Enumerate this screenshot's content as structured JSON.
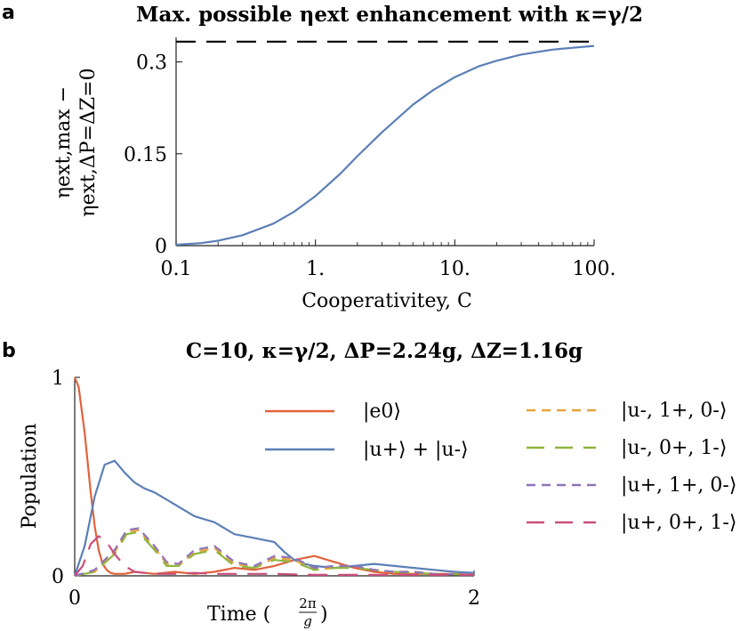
{
  "panels": {
    "a": {
      "letter": "a",
      "title": "Max. possible ηext enhancement with κ=γ/2",
      "ylabel_top": "ηext,max −",
      "ylabel_bottom": "ηext,ΔP=ΔZ=0",
      "xlabel": "Cooperativitey, C",
      "xticks": [
        "0.1",
        "1.",
        "10.",
        "100."
      ],
      "yticks": [
        "0",
        "0.15",
        "0.3"
      ]
    },
    "b": {
      "letter": "b",
      "title": "C=10,  κ=γ/2,  ΔP=2.24g,  ΔZ=1.16g",
      "ylabel": "Population",
      "xlabel": "Time (2π/g)",
      "xticks": [
        "0",
        "2"
      ],
      "yticks": [
        "0",
        "1"
      ]
    }
  },
  "chart_data": [
    {
      "type": "line",
      "title": "Max. possible ηext enhancement with κ=γ/2",
      "xlabel": "Cooperativitey, C",
      "ylabel": "ηext,max − ηext,ΔP=ΔZ=0",
      "xscale": "log",
      "xlim": [
        0.1,
        100
      ],
      "ylim": [
        0,
        0.34
      ],
      "asymptote": 0.333,
      "series": [
        {
          "color": "#5b7fb6",
          "dash": "solid",
          "x": [
            0.1,
            0.15,
            0.2,
            0.3,
            0.5,
            0.7,
            1,
            1.5,
            2,
            3,
            5,
            7,
            10,
            15,
            20,
            30,
            50,
            70,
            100
          ],
          "y": [
            0.0015,
            0.004,
            0.008,
            0.017,
            0.036,
            0.055,
            0.081,
            0.117,
            0.146,
            0.185,
            0.23,
            0.254,
            0.275,
            0.293,
            0.302,
            0.312,
            0.32,
            0.323,
            0.326
          ]
        },
        {
          "color": "#000000",
          "dash": "long-dash",
          "x": [
            0.1,
            100
          ],
          "y": [
            0.333,
            0.333
          ]
        }
      ]
    },
    {
      "type": "line",
      "title": "C=10,  κ=γ/2,  ΔP=2.24g,  ΔZ=1.16g",
      "xlabel": "Time (2π/g)",
      "ylabel": "Population",
      "xlim": [
        0,
        2
      ],
      "ylim": [
        0,
        1
      ],
      "legend": "top-right",
      "series": [
        {
          "name": "|e0⟩",
          "color": "#e2623b",
          "dash": "solid",
          "x": [
            0,
            0.02,
            0.05,
            0.08,
            0.1,
            0.12,
            0.14,
            0.16,
            0.18,
            0.2,
            0.25,
            0.3,
            0.4,
            0.5,
            0.6,
            0.7,
            0.8,
            0.9,
            1.0,
            1.1,
            1.2,
            1.3,
            1.4,
            1.5,
            1.6,
            1.7,
            1.8,
            1.9,
            2.0
          ],
          "y": [
            1.0,
            0.95,
            0.72,
            0.42,
            0.25,
            0.13,
            0.06,
            0.03,
            0.015,
            0.01,
            0.01,
            0.02,
            0.01,
            0.02,
            0.01,
            0.02,
            0.04,
            0.03,
            0.05,
            0.08,
            0.1,
            0.07,
            0.04,
            0.02,
            0.01,
            0.01,
            0.01,
            0.01,
            0.005
          ]
        },
        {
          "name": "|u+⟩ + |u-⟩",
          "color": "#5b7fb6",
          "dash": "solid",
          "x": [
            0,
            0.05,
            0.1,
            0.15,
            0.2,
            0.25,
            0.3,
            0.35,
            0.4,
            0.5,
            0.6,
            0.7,
            0.8,
            0.9,
            1.0,
            1.05,
            1.1,
            1.15,
            1.2,
            1.3,
            1.4,
            1.5,
            1.6,
            1.7,
            1.8,
            1.9,
            2.0
          ],
          "y": [
            0,
            0.15,
            0.4,
            0.56,
            0.58,
            0.52,
            0.47,
            0.44,
            0.42,
            0.36,
            0.3,
            0.27,
            0.21,
            0.19,
            0.17,
            0.12,
            0.08,
            0.06,
            0.05,
            0.04,
            0.05,
            0.06,
            0.05,
            0.04,
            0.03,
            0.02,
            0.015
          ]
        },
        {
          "name": "|u-, 1+, 0-⟩",
          "color": "#e6a43a",
          "dash": "short-dash",
          "x": [
            0,
            0.1,
            0.2,
            0.26,
            0.32,
            0.4,
            0.46,
            0.52,
            0.6,
            0.7,
            0.8,
            0.9,
            1.0,
            1.1,
            1.2,
            1.3,
            1.4,
            1.5,
            1.6,
            1.7,
            1.8,
            2.0
          ],
          "y": [
            0,
            0.02,
            0.12,
            0.22,
            0.23,
            0.14,
            0.06,
            0.05,
            0.12,
            0.14,
            0.06,
            0.04,
            0.09,
            0.08,
            0.03,
            0.04,
            0.05,
            0.03,
            0.02,
            0.02,
            0.01,
            0.005
          ]
        },
        {
          "name": "|u-, 0+, 1-⟩",
          "color": "#8fb53e",
          "dash": "long-dash",
          "x": [
            0,
            0.1,
            0.2,
            0.26,
            0.32,
            0.4,
            0.46,
            0.52,
            0.6,
            0.7,
            0.8,
            0.9,
            1.0,
            1.1,
            1.2,
            1.3,
            1.4,
            1.5,
            1.6,
            1.7,
            1.8,
            2.0
          ],
          "y": [
            0,
            0.02,
            0.11,
            0.21,
            0.22,
            0.13,
            0.05,
            0.05,
            0.11,
            0.13,
            0.05,
            0.04,
            0.08,
            0.07,
            0.03,
            0.04,
            0.04,
            0.03,
            0.02,
            0.015,
            0.01,
            0.005
          ]
        },
        {
          "name": "|u+, 1+, 0-⟩",
          "color": "#8f74b8",
          "dash": "short-dash",
          "x": [
            0,
            0.1,
            0.2,
            0.26,
            0.32,
            0.4,
            0.46,
            0.52,
            0.6,
            0.7,
            0.8,
            0.9,
            1.0,
            1.1,
            1.2,
            1.3,
            1.4,
            1.5,
            1.6,
            1.7,
            1.8,
            2.0
          ],
          "y": [
            0,
            0.03,
            0.13,
            0.23,
            0.24,
            0.15,
            0.07,
            0.06,
            0.13,
            0.15,
            0.07,
            0.05,
            0.1,
            0.09,
            0.04,
            0.05,
            0.05,
            0.03,
            0.02,
            0.02,
            0.01,
            0.005
          ]
        },
        {
          "name": "|u+, 0+, 1-⟩",
          "color": "#c94f7c",
          "dash": "long-dash",
          "x": [
            0,
            0.04,
            0.08,
            0.12,
            0.16,
            0.2,
            0.25,
            0.3,
            0.35,
            0.4,
            0.5,
            0.6,
            0.7,
            0.8,
            0.9,
            1.0,
            1.2,
            1.4,
            1.6,
            1.8,
            2.0
          ],
          "y": [
            0,
            0.05,
            0.16,
            0.2,
            0.17,
            0.11,
            0.05,
            0.02,
            0.015,
            0.01,
            0.01,
            0.015,
            0.01,
            0.01,
            0.01,
            0.01,
            0.005,
            0.005,
            0.005,
            0.005,
            0.005
          ]
        }
      ]
    }
  ]
}
